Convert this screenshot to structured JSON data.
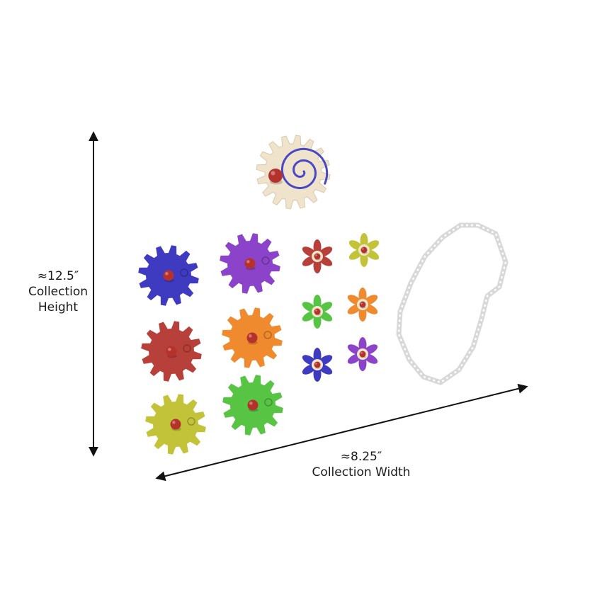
{
  "dimensions": {
    "height": {
      "value": "≈12.5″",
      "caption": "Collection Height"
    },
    "width": {
      "value": "≈8.25″",
      "caption": "Collection Width"
    }
  },
  "colors": {
    "background": "#ffffff",
    "arrow": "#111111",
    "peg": "#b5322c",
    "large_gear": "#efe3cc",
    "spiral": "#4a47c4",
    "chain": "#d8d8d8"
  },
  "gears": [
    {
      "name": "blue",
      "color": "#3f3bc1"
    },
    {
      "name": "purple",
      "color": "#8b44c9"
    },
    {
      "name": "red",
      "color": "#b8403a"
    },
    {
      "name": "orange",
      "color": "#f08a2e"
    },
    {
      "name": "yellow",
      "color": "#c3c33a"
    },
    {
      "name": "green",
      "color": "#58c444"
    }
  ],
  "flowers": [
    {
      "name": "red",
      "color": "#b8403a"
    },
    {
      "name": "yellow",
      "color": "#c3c33a"
    },
    {
      "name": "green",
      "color": "#58c444"
    },
    {
      "name": "orange",
      "color": "#f08a2e"
    },
    {
      "name": "blue",
      "color": "#3f3bc1"
    },
    {
      "name": "purple",
      "color": "#8b44c9"
    }
  ]
}
